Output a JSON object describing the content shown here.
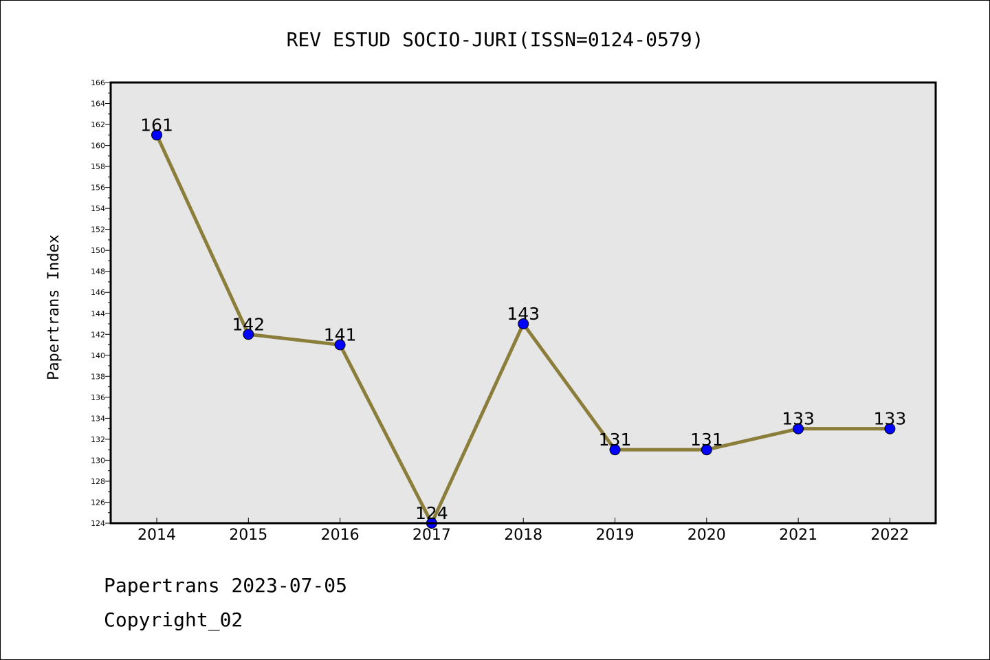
{
  "chart_data": {
    "type": "line",
    "title": "REV ESTUD SOCIO-JURI(ISSN=0124-0579)",
    "ylabel": "Papertrans Index",
    "xlabel": "",
    "categories": [
      "2014",
      "2015",
      "2016",
      "2017",
      "2018",
      "2019",
      "2020",
      "2021",
      "2022"
    ],
    "series": [
      {
        "values": [
          161,
          142,
          141,
          124,
          143,
          131,
          131,
          133,
          133
        ],
        "line_color": "#8b7d3a",
        "marker_color": "#0000ff"
      }
    ],
    "data_labels": [
      "161",
      "142",
      "141",
      "124",
      "143",
      "131",
      "131",
      "133",
      "133"
    ],
    "ylim": [
      124,
      166
    ],
    "yticks": [
      "124",
      "126",
      "128",
      "130",
      "132",
      "134",
      "136",
      "138",
      "140",
      "142",
      "144",
      "146",
      "148",
      "150",
      "152",
      "154",
      "156",
      "158",
      "160",
      "162",
      "164",
      "166"
    ],
    "grid": false,
    "plot_background": "#e6e6e6"
  },
  "footer": {
    "date_line": "Papertrans 2023-07-05",
    "copyright_line": "Copyright_02"
  }
}
